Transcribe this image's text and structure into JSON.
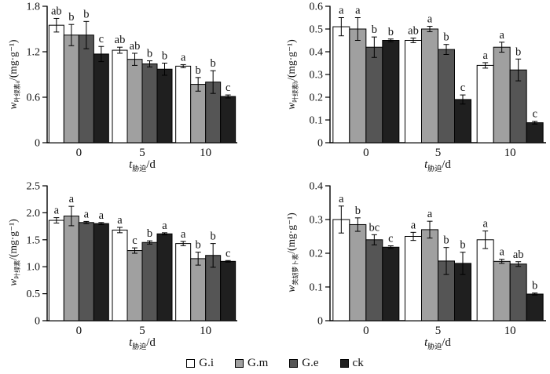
{
  "figure": {
    "background": "#ffffff",
    "axis_color": "#000000"
  },
  "legend": {
    "items": [
      {
        "label": "G.i",
        "color": "#ffffff"
      },
      {
        "label": "G.m",
        "color": "#a0a0a0"
      },
      {
        "label": "G.e",
        "color": "#555555"
      },
      {
        "label": "ck",
        "color": "#1f1f1f"
      }
    ]
  },
  "chart_data": [
    {
      "id": "chlorophyll-a",
      "type": "bar",
      "position": "top-left",
      "ylabel_var": "w",
      "ylabel_sub": "叶绿素a",
      "ylabel_unit": "/(mg·g⁻¹)",
      "xlabel_var": "t",
      "xlabel_sub": "胁迫",
      "xlabel_unit": "/d",
      "categories": [
        "0",
        "5",
        "10"
      ],
      "ylim": [
        0,
        1.8
      ],
      "yticks": [
        0,
        0.6,
        1.2,
        1.8
      ],
      "ytick_labels": [
        "0",
        "0.6",
        "1.2",
        "1.8"
      ],
      "grid": false,
      "series": [
        {
          "name": "G.i",
          "color": "#ffffff",
          "values": [
            1.55,
            1.22,
            1.01
          ],
          "errors": [
            0.09,
            0.04,
            0.02
          ],
          "letters": [
            "ab",
            "ab",
            "a"
          ]
        },
        {
          "name": "G.m",
          "color": "#a0a0a0",
          "values": [
            1.42,
            1.1,
            0.77
          ],
          "errors": [
            0.14,
            0.08,
            0.09
          ],
          "letters": [
            "b",
            "ab",
            "b"
          ]
        },
        {
          "name": "G.e",
          "color": "#555555",
          "values": [
            1.42,
            1.04,
            0.8
          ],
          "errors": [
            0.18,
            0.04,
            0.15
          ],
          "letters": [
            "b",
            "b",
            "b"
          ]
        },
        {
          "name": "ck",
          "color": "#1f1f1f",
          "values": [
            1.17,
            0.97,
            0.61
          ],
          "errors": [
            0.1,
            0.08,
            0.02
          ],
          "letters": [
            "c",
            "b",
            "c"
          ]
        }
      ]
    },
    {
      "id": "chlorophyll-b",
      "type": "bar",
      "position": "top-right",
      "ylabel_var": "w",
      "ylabel_sub": "叶绿素b",
      "ylabel_unit": "/(mg·g⁻¹)",
      "xlabel_var": "t",
      "xlabel_sub": "胁迫",
      "xlabel_unit": "/d",
      "categories": [
        "0",
        "5",
        "10"
      ],
      "ylim": [
        0,
        0.6
      ],
      "yticks": [
        0,
        0.1,
        0.2,
        0.3,
        0.4,
        0.5,
        0.6
      ],
      "ytick_labels": [
        "0",
        "0.1",
        "0.2",
        "0.3",
        "0.4",
        "0.5",
        "0.6"
      ],
      "grid": false,
      "series": [
        {
          "name": "G.i",
          "color": "#ffffff",
          "values": [
            0.51,
            0.45,
            0.34
          ],
          "errors": [
            0.04,
            0.01,
            0.012
          ],
          "letters": [
            "a",
            "ab",
            "a"
          ]
        },
        {
          "name": "G.m",
          "color": "#a0a0a0",
          "values": [
            0.5,
            0.5,
            0.42
          ],
          "errors": [
            0.05,
            0.012,
            0.022
          ],
          "letters": [
            "a",
            "a",
            "a"
          ]
        },
        {
          "name": "G.e",
          "color": "#555555",
          "values": [
            0.42,
            0.41,
            0.32
          ],
          "errors": [
            0.045,
            0.022,
            0.048
          ],
          "letters": [
            "b",
            "b",
            "b"
          ]
        },
        {
          "name": "ck",
          "color": "#1f1f1f",
          "values": [
            0.45,
            0.19,
            0.088
          ],
          "errors": [
            0.006,
            0.02,
            0.006
          ],
          "letters": [
            "b",
            "c",
            "c"
          ]
        }
      ]
    },
    {
      "id": "total-chlorophyll",
      "type": "bar",
      "position": "bottom-left",
      "ylabel_var": "w",
      "ylabel_sub": "叶绿素",
      "ylabel_unit": "/(mg·g⁻¹)",
      "xlabel_var": "t",
      "xlabel_sub": "胁迫",
      "xlabel_unit": "/d",
      "categories": [
        "0",
        "5",
        "10"
      ],
      "ylim": [
        0,
        2.5
      ],
      "yticks": [
        0,
        0.5,
        1.0,
        1.5,
        2.0,
        2.5
      ],
      "ytick_labels": [
        "0",
        "0.5",
        "1.0",
        "1.5",
        "2.0",
        "2.5"
      ],
      "grid": false,
      "series": [
        {
          "name": "G.i",
          "color": "#ffffff",
          "values": [
            1.86,
            1.68,
            1.43
          ],
          "errors": [
            0.05,
            0.05,
            0.04
          ],
          "letters": [
            "a",
            "a",
            "a"
          ]
        },
        {
          "name": "G.m",
          "color": "#a0a0a0",
          "values": [
            1.94,
            1.3,
            1.15
          ],
          "errors": [
            0.18,
            0.05,
            0.12
          ],
          "letters": [
            "a",
            "c",
            "b"
          ]
        },
        {
          "name": "G.e",
          "color": "#555555",
          "values": [
            1.82,
            1.45,
            1.21
          ],
          "errors": [
            0.02,
            0.03,
            0.22
          ],
          "letters": [
            "a",
            "b",
            "b"
          ]
        },
        {
          "name": "ck",
          "color": "#1f1f1f",
          "values": [
            1.8,
            1.61,
            1.1
          ],
          "errors": [
            0.02,
            0.02,
            0.015
          ],
          "letters": [
            "a",
            "a",
            "c"
          ]
        }
      ]
    },
    {
      "id": "carotenoid",
      "type": "bar",
      "position": "bottom-right",
      "ylabel_var": "w",
      "ylabel_sub": "类胡萝卜素",
      "ylabel_unit": "/(mg·g⁻¹)",
      "xlabel_var": "t",
      "xlabel_sub": "胁迫",
      "xlabel_unit": "/d",
      "categories": [
        "0",
        "5",
        "10"
      ],
      "ylim": [
        0,
        0.4
      ],
      "yticks": [
        0,
        0.1,
        0.2,
        0.3,
        0.4
      ],
      "ytick_labels": [
        "0",
        "0.1",
        "0.2",
        "0.3",
        "0.4"
      ],
      "grid": false,
      "series": [
        {
          "name": "G.i",
          "color": "#ffffff",
          "values": [
            0.3,
            0.25,
            0.24
          ],
          "errors": [
            0.04,
            0.012,
            0.026
          ],
          "letters": [
            "a",
            "a",
            "a"
          ]
        },
        {
          "name": "G.m",
          "color": "#a0a0a0",
          "values": [
            0.285,
            0.27,
            0.176
          ],
          "errors": [
            0.02,
            0.025,
            0.006
          ],
          "letters": [
            "b",
            "a",
            "a"
          ]
        },
        {
          "name": "G.e",
          "color": "#555555",
          "values": [
            0.24,
            0.177,
            0.168
          ],
          "errors": [
            0.015,
            0.04,
            0.007
          ],
          "letters": [
            "bc",
            "b",
            "ab"
          ]
        },
        {
          "name": "ck",
          "color": "#1f1f1f",
          "values": [
            0.218,
            0.17,
            0.079
          ],
          "errors": [
            0.004,
            0.033,
            0.003
          ],
          "letters": [
            "c",
            "b",
            "b"
          ]
        }
      ]
    }
  ]
}
